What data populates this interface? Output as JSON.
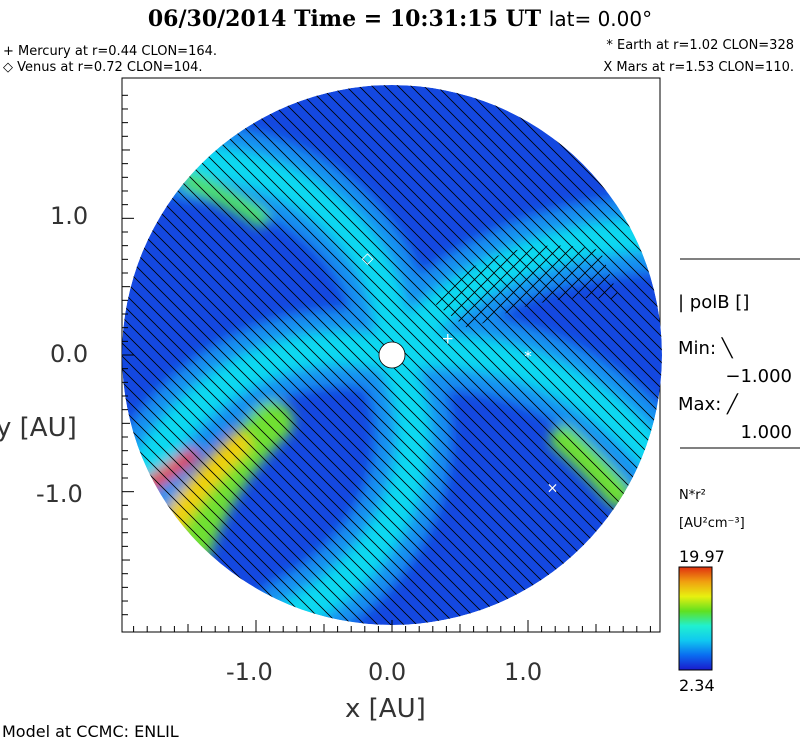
{
  "header": {
    "title": "06/30/2014 Time = 10:31:15 UT",
    "lat": "lat= 0.00°",
    "mercury": "+ Mercury at r=0.44 CLON=164.",
    "venus": "◇ Venus at r=0.72 CLON=104.",
    "earth": "* Earth at  r=1.02 CLON=328",
    "mars": "X Mars at r=1.53 CLON=110."
  },
  "legend": {
    "polb_label": "| polB []",
    "min_label": "Min: ╲",
    "min_value": "−1.000",
    "max_label": "Max: ╱",
    "max_value": "1.000",
    "density_label": "N*r²",
    "density_unit": "[AU²cm⁻³]"
  },
  "footer": "Model at CCMC: ENLIL",
  "chart_data": {
    "type": "heatmap",
    "title": "06/30/2014 Time = 10:31:15 UT lat= 0.00°",
    "xlabel": "x [AU]",
    "ylabel": "y [AU]",
    "xlim": [
      -2.0,
      2.0
    ],
    "ylim": [
      -2.0,
      2.0
    ],
    "x_ticks": [
      "-1.0",
      "0.0",
      "1.0"
    ],
    "y_ticks": [
      "1.0",
      "0.0",
      "-1.0"
    ],
    "colorbar": {
      "min": "2.34",
      "max": "19.97",
      "colors": [
        "#1a1acc",
        "#0a6cf0",
        "#10c8f0",
        "#20f0d0",
        "#60e020",
        "#e8f010",
        "#f0a010",
        "#e03010"
      ]
    },
    "planets": [
      {
        "name": "Mercury",
        "marker": "+",
        "x": 0.41,
        "y": 0.12
      },
      {
        "name": "Venus",
        "marker": "◇",
        "x": -0.18,
        "y": 0.71
      },
      {
        "name": "Earth",
        "marker": "*",
        "x": 1.0,
        "y": -0.01
      },
      {
        "name": "Mars",
        "marker": "X",
        "x": 1.18,
        "y": -0.97
      }
    ]
  }
}
